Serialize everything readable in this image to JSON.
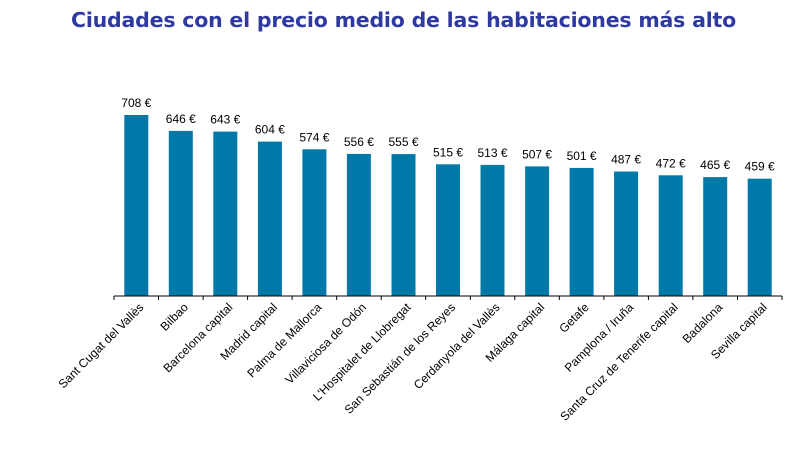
{
  "chart_data": {
    "type": "bar",
    "title": "Ciudades con el precio medio de las habitaciones más alto",
    "xlabel": "",
    "ylabel": "",
    "categories": [
      "Sant Cugat del Vallès",
      "Bilbao",
      "Barcelona capital",
      "Madrid capital",
      "Palma de Mallorca",
      "Villaviciosa de Odón",
      "L'Hospitalet de Llobregat",
      "San Sebastián de los Reyes",
      "Cerdanyola del Vallès",
      "Málaga capital",
      "Getafe",
      "Pamplona / Iruña",
      "Santa Cruz de Tenerife capital",
      "Badalona",
      "Sevilla capital"
    ],
    "values": [
      708,
      646,
      643,
      604,
      574,
      556,
      555,
      515,
      513,
      507,
      501,
      487,
      472,
      465,
      459
    ],
    "data_labels": [
      "708 €",
      "646 €",
      "643 €",
      "604 €",
      "574 €",
      "556 €",
      "555 €",
      "515 €",
      "513 €",
      "507 €",
      "501 €",
      "487 €",
      "472 €",
      "465 €",
      "459 €"
    ],
    "ylim": [
      0,
      708
    ],
    "grid": false,
    "legend": "none",
    "colors": {
      "bar": "#0079A8",
      "title": "#2E3A9F",
      "axis": "#000000"
    }
  }
}
